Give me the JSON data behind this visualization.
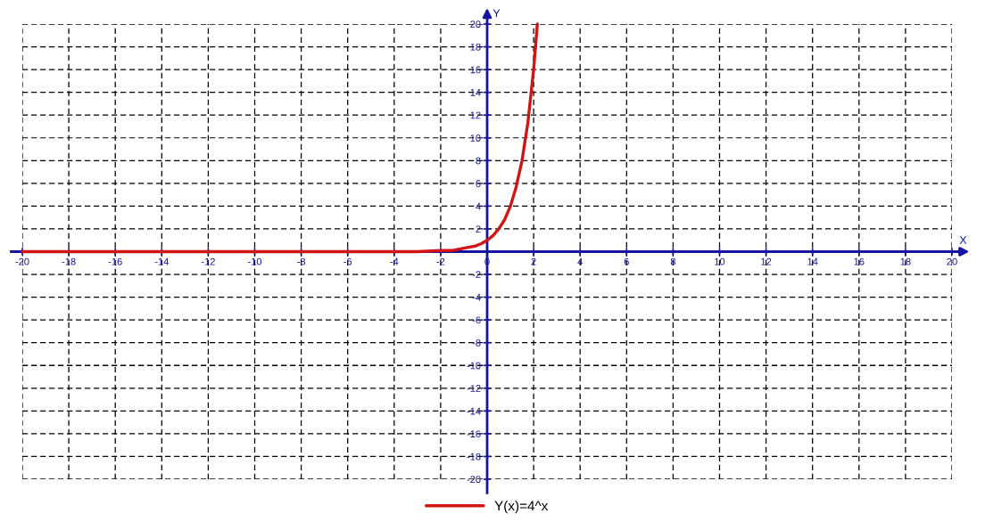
{
  "chart_data": {
    "type": "line",
    "xlabel": "X",
    "ylabel": "Y",
    "x": [
      -20,
      -10,
      -4,
      -3,
      -2,
      -1.5,
      -1,
      -0.75,
      -0.5,
      -0.25,
      0,
      0.25,
      0.5,
      0.75,
      1,
      1.25,
      1.5,
      1.75,
      2,
      2.16
    ],
    "series": [
      {
        "name": "Y(x)=4^x",
        "color": "#d01414",
        "values": [
          0,
          0,
          0,
          0,
          0.1,
          0.1,
          0.3,
          0.4,
          0.5,
          0.7,
          1,
          1.4,
          2,
          2.8,
          4,
          5.7,
          8,
          11.3,
          16,
          20
        ]
      }
    ],
    "xlim": [
      -20,
      20
    ],
    "ylim": [
      -20,
      20
    ],
    "xticks": [
      -20,
      -18,
      -16,
      -14,
      -12,
      -10,
      -8,
      -6,
      -4,
      -2,
      0,
      2,
      4,
      6,
      8,
      10,
      12,
      14,
      16,
      18,
      20
    ],
    "yticks": [
      -20,
      -18,
      -16,
      -14,
      -12,
      -10,
      -8,
      -6,
      -4,
      -2,
      2,
      4,
      6,
      8,
      10,
      12,
      14,
      16,
      18,
      20
    ],
    "grid": true,
    "legend": "bottom",
    "line_style": "solid"
  }
}
